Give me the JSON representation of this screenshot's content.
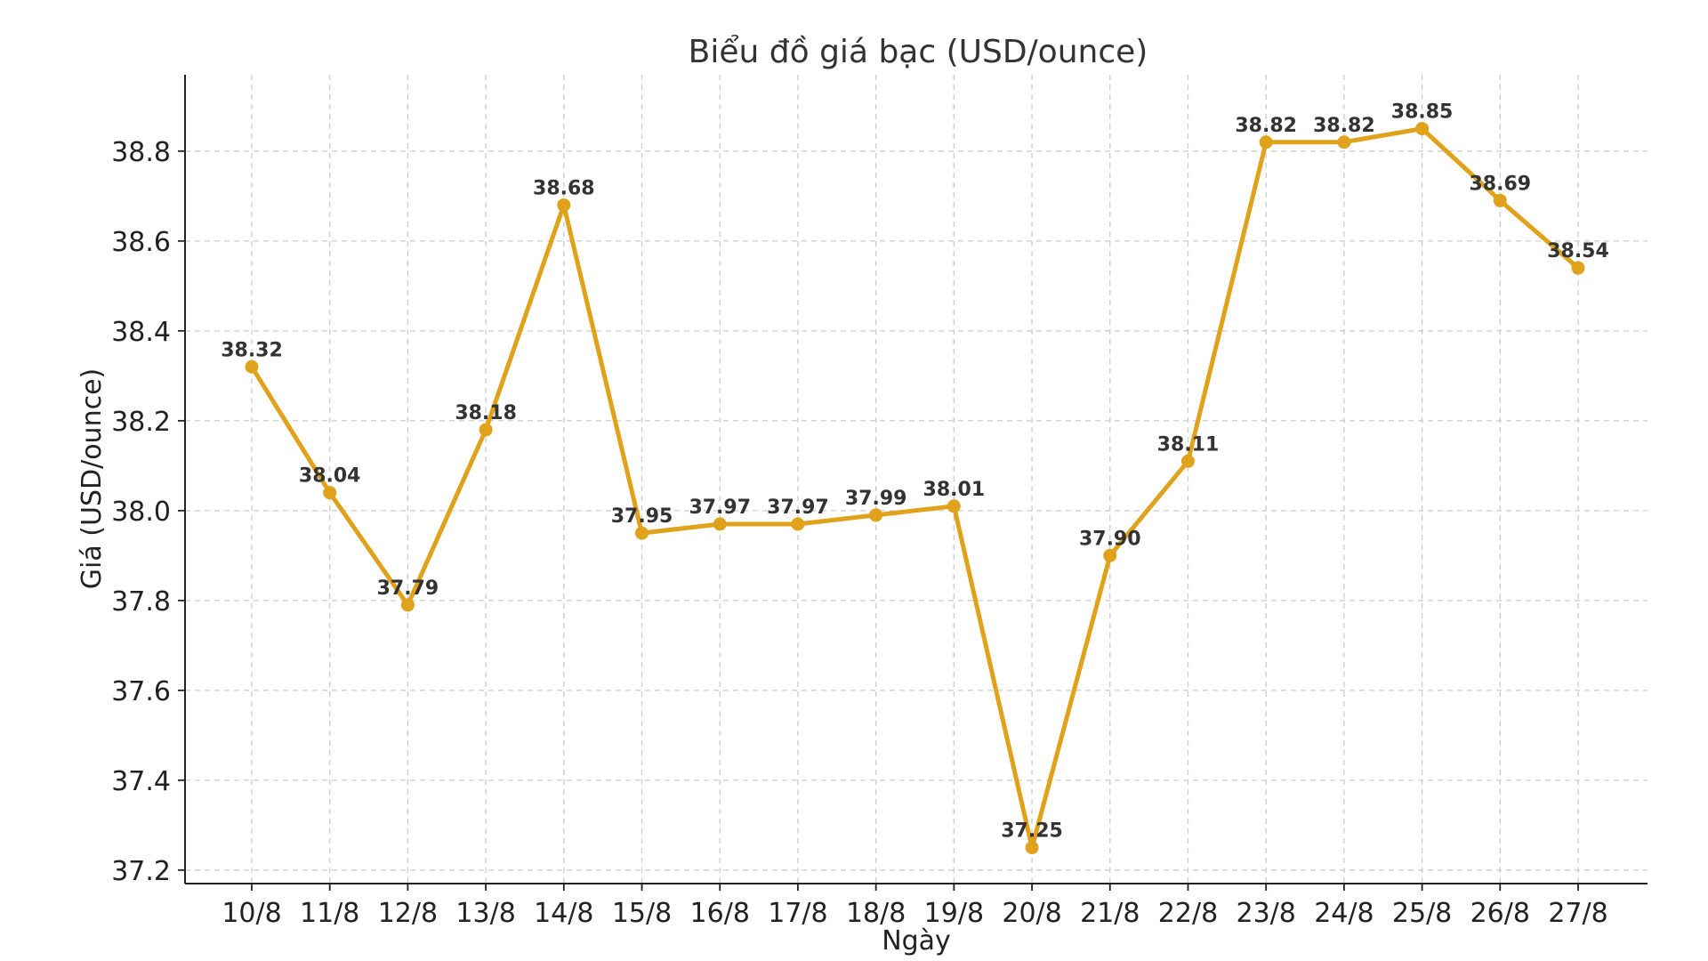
{
  "chart_data": {
    "type": "line",
    "title": "Biểu đồ giá bạc (USD/ounce)",
    "xlabel": "Ngày",
    "ylabel": "Giá (USD/ounce)",
    "categories": [
      "10/8",
      "11/8",
      "12/8",
      "13/8",
      "14/8",
      "15/8",
      "16/8",
      "17/8",
      "18/8",
      "19/8",
      "20/8",
      "21/8",
      "22/8",
      "23/8",
      "24/8",
      "25/8",
      "26/8",
      "27/8"
    ],
    "series": [
      {
        "values": [
          38.32,
          38.04,
          37.79,
          38.18,
          38.68,
          37.95,
          37.97,
          37.97,
          37.99,
          38.01,
          37.25,
          37.9,
          38.11,
          38.82,
          38.82,
          38.85,
          38.69,
          38.54
        ],
        "labels": [
          "38.32",
          "38.04",
          "37.79",
          "38.18",
          "38.68",
          "37.95",
          "37.97",
          "37.97",
          "37.99",
          "38.01",
          "37.25",
          "37.90",
          "38.11",
          "38.82",
          "38.82",
          "38.85",
          "38.69",
          "38.54"
        ]
      }
    ],
    "yticks": [
      37.2,
      37.4,
      37.6,
      37.8,
      38.0,
      38.2,
      38.4,
      38.6,
      38.8
    ],
    "ytick_labels": [
      "37.2",
      "37.4",
      "37.6",
      "37.8",
      "38.0",
      "38.2",
      "38.4",
      "38.6",
      "38.8"
    ],
    "ylim": [
      37.17,
      38.97
    ],
    "grid": true,
    "colors": {
      "line": "#E0A21B",
      "marker": "#E0A21B"
    }
  }
}
